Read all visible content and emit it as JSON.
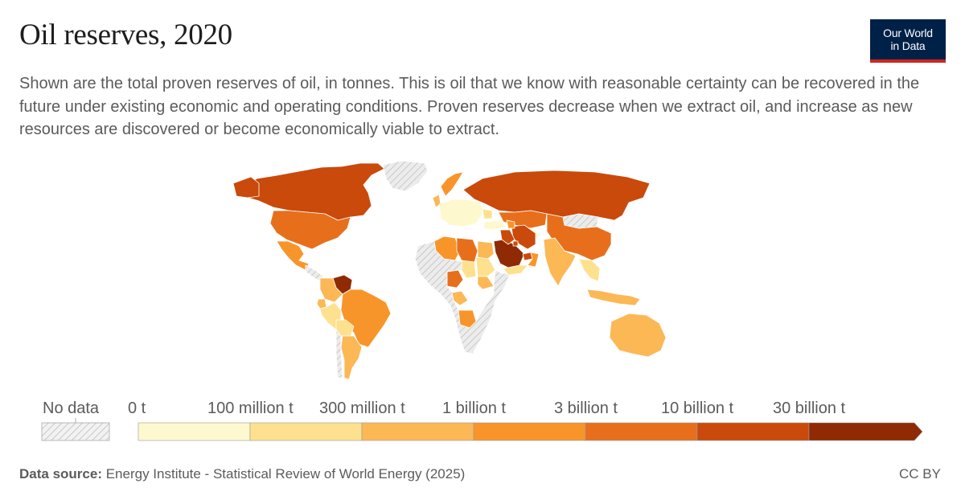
{
  "header": {
    "title": "Oil reserves, 2020",
    "subtitle": "Shown are the total proven reserves of oil, in tonnes. This is oil that we know with reasonable certainty can be recovered in the future under existing economic and operating conditions. Proven reserves decrease when we extract oil, and increase as new resources are discovered or become economically viable to extract."
  },
  "logo": {
    "line1": "Our World",
    "line2": "in Data"
  },
  "legend": {
    "no_data_label": "No data",
    "bins": [
      {
        "label": "0 t",
        "color": "#fef8ce"
      },
      {
        "label": "100 million t",
        "color": "#fde18e"
      },
      {
        "label": "300 million t",
        "color": "#fbb855"
      },
      {
        "label": "1 billion t",
        "color": "#f8952a"
      },
      {
        "label": "3 billion t",
        "color": "#e76f1c"
      },
      {
        "label": "10 billion t",
        "color": "#c94a0b"
      },
      {
        "label": "30 billion t",
        "color": "#8f2a05"
      }
    ]
  },
  "colors": {
    "no_data_fill": "#e6e6e6",
    "no_data_hatch": "#c8c8c8",
    "border": "#ffffff",
    "logo_bg": "#002147",
    "logo_accent": "#ce261e"
  },
  "map_regions": [
    {
      "name": "Canada",
      "tier": 5
    },
    {
      "name": "Alaska (United States)",
      "tier": 5
    },
    {
      "name": "United States",
      "tier": 4
    },
    {
      "name": "Mexico",
      "tier": 3
    },
    {
      "name": "Greenland",
      "tier": -1
    },
    {
      "name": "Central America",
      "tier": -1
    },
    {
      "name": "Venezuela",
      "tier": 6
    },
    {
      "name": "Colombia",
      "tier": 2
    },
    {
      "name": "Ecuador",
      "tier": 2
    },
    {
      "name": "Peru",
      "tier": 1
    },
    {
      "name": "Brazil",
      "tier": 3
    },
    {
      "name": "Bolivia",
      "tier": 1
    },
    {
      "name": "Argentina",
      "tier": 2
    },
    {
      "name": "Chile",
      "tier": -1
    },
    {
      "name": "Norway",
      "tier": 3
    },
    {
      "name": "United Kingdom",
      "tier": 2
    },
    {
      "name": "Western Europe",
      "tier": 0
    },
    {
      "name": "Romania",
      "tier": 1
    },
    {
      "name": "Russia",
      "tier": 5
    },
    {
      "name": "Kazakhstan",
      "tier": 4
    },
    {
      "name": "Central Asia",
      "tier": 0
    },
    {
      "name": "China",
      "tier": 4
    },
    {
      "name": "Mongolia",
      "tier": -1
    },
    {
      "name": "India",
      "tier": 2
    },
    {
      "name": "Southeast Asia",
      "tier": 1
    },
    {
      "name": "Indonesia",
      "tier": 2
    },
    {
      "name": "Australia",
      "tier": 2
    },
    {
      "name": "Algeria",
      "tier": 3
    },
    {
      "name": "Libya",
      "tier": 4
    },
    {
      "name": "Egypt",
      "tier": 2
    },
    {
      "name": "Sudan",
      "tier": 1
    },
    {
      "name": "South Sudan",
      "tier": 2
    },
    {
      "name": "Nigeria",
      "tier": 4
    },
    {
      "name": "Chad",
      "tier": 1
    },
    {
      "name": "Gabon & Congo",
      "tier": 2
    },
    {
      "name": "Angola",
      "tier": 3
    },
    {
      "name": "Rest of Africa",
      "tier": -1
    },
    {
      "name": "Saudi Arabia",
      "tier": 6
    },
    {
      "name": "Iran",
      "tier": 5
    },
    {
      "name": "Iraq",
      "tier": 5
    },
    {
      "name": "Kuwait",
      "tier": 5
    },
    {
      "name": "United Arab Emirates",
      "tier": 5
    },
    {
      "name": "Oman",
      "tier": 3
    },
    {
      "name": "Yemen",
      "tier": 1
    },
    {
      "name": "Turkey",
      "tier": 0
    },
    {
      "name": "Azerbaijan",
      "tier": 3
    }
  ],
  "footer": {
    "source_label": "Data source:",
    "source_text": "Energy Institute - Statistical Review of World Energy (2025)",
    "license": "CC BY"
  }
}
